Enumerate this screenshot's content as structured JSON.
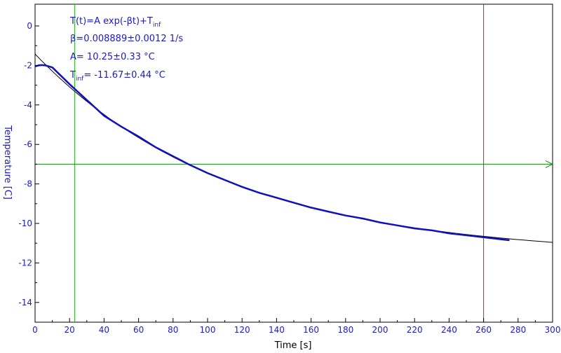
{
  "chart_data": {
    "type": "line",
    "xlabel": "Time [s]",
    "ylabel": "Temperature [C]",
    "xlim": [
      0,
      300
    ],
    "ylim": [
      -15,
      1.1
    ],
    "x_ticks": [
      0,
      20,
      40,
      60,
      80,
      100,
      120,
      140,
      160,
      180,
      200,
      220,
      240,
      260,
      280,
      300
    ],
    "y_ticks": [
      0,
      -2,
      -4,
      -6,
      -8,
      -10,
      -12,
      -14
    ],
    "grid": false,
    "fit": {
      "model": "T(t)=A exp(-βt)+T",
      "model_sub": "inf",
      "beta_text": "β=0.008889±0.0012 1/s",
      "A_text": "A= 10.25±0.33 °C",
      "tinf_label": "T",
      "tinf_sub": "inf",
      "tinf_text": "= -11.67±0.44 °C",
      "A": 10.25,
      "beta": 0.008889,
      "T_inf": -11.67,
      "x_range": [
        0,
        300
      ]
    },
    "series": [
      {
        "color": "#1010c0",
        "x": [
          0,
          2,
          4,
          6,
          8,
          10,
          20,
          30,
          40,
          50,
          60,
          70,
          80,
          90,
          100,
          110,
          120,
          130,
          140,
          150,
          160,
          170,
          180,
          190,
          200,
          210,
          220,
          230,
          240,
          250,
          260,
          270,
          275
        ],
        "y": [
          -2.05,
          -2.0,
          -1.98,
          -2.0,
          -2.05,
          -2.1,
          -2.95,
          -3.75,
          -4.55,
          -5.1,
          -5.6,
          -6.15,
          -6.6,
          -7.05,
          -7.45,
          -7.8,
          -8.15,
          -8.45,
          -8.7,
          -8.95,
          -9.2,
          -9.4,
          -9.6,
          -9.75,
          -9.95,
          -10.1,
          -10.25,
          -10.35,
          -10.5,
          -10.6,
          -10.7,
          -10.8,
          -10.85
        ]
      }
    ],
    "annotations": {
      "green_vline_x": 23,
      "red_vline_x": 260,
      "horizontal_line_y": -7.0,
      "green_color": "#22bb22",
      "red_color": "#cc2222",
      "horizontal_color": "#118811"
    }
  }
}
